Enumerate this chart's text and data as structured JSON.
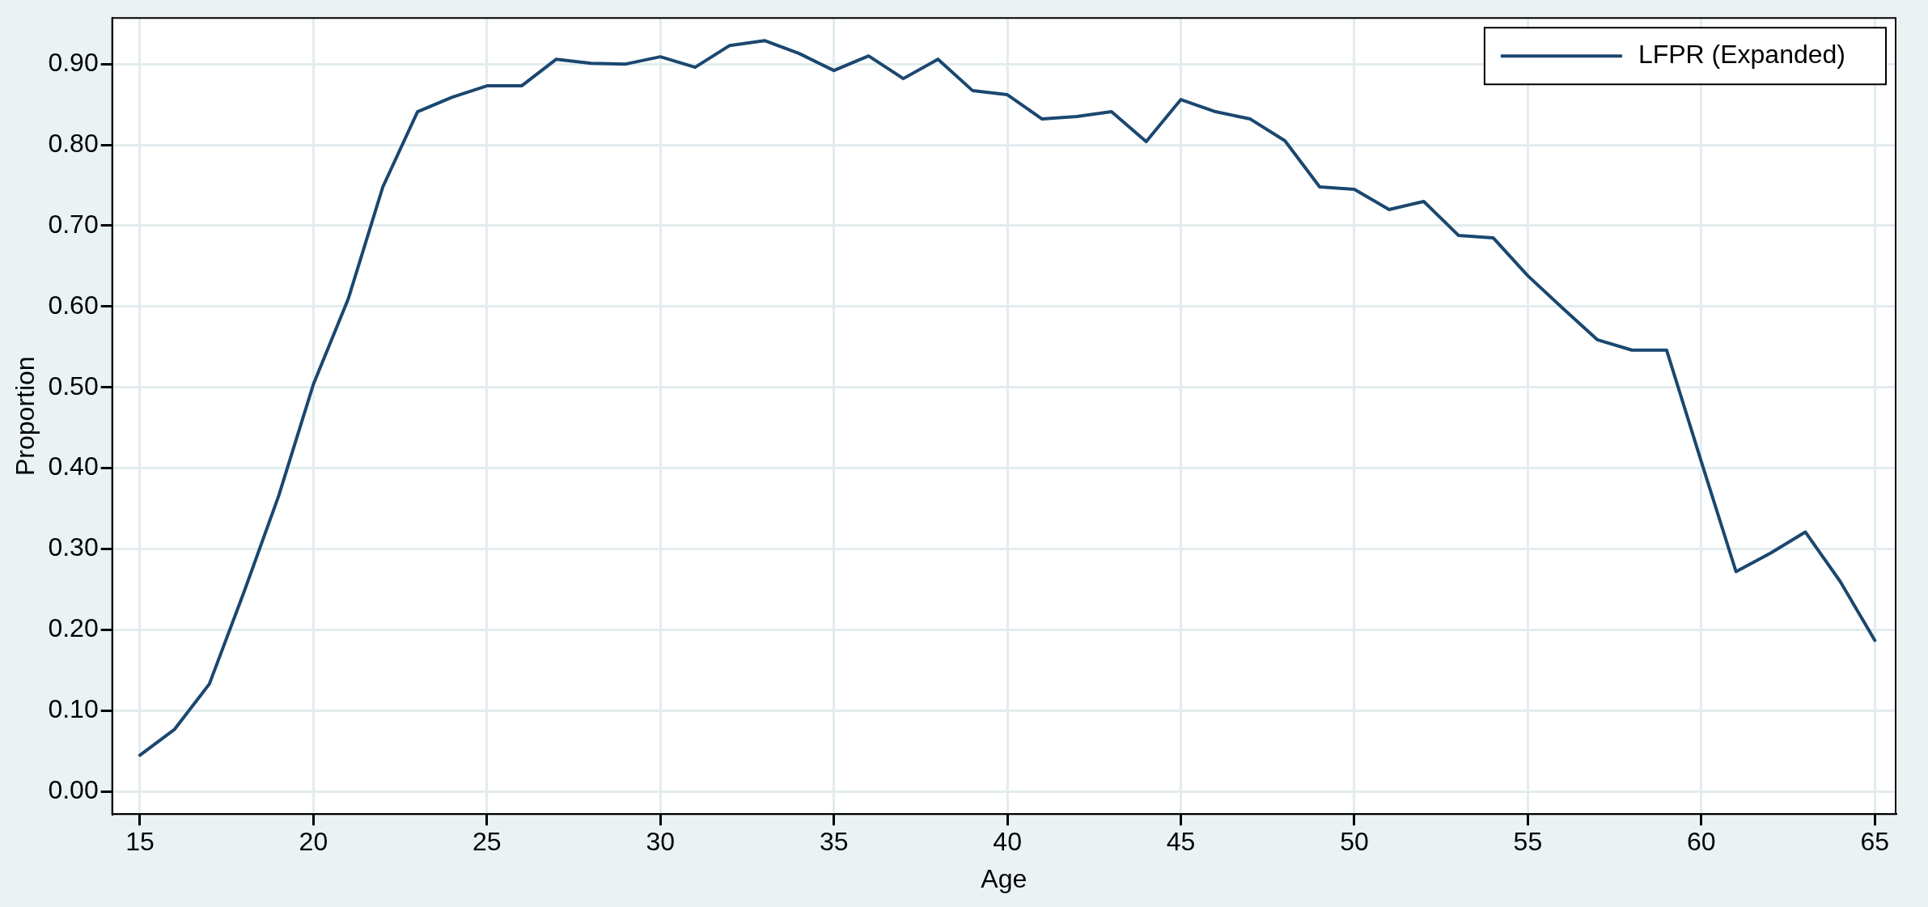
{
  "chart_data": {
    "type": "line",
    "xlabel": "Age",
    "ylabel": "Proportion",
    "x": [
      15,
      16,
      17,
      18,
      19,
      20,
      21,
      22,
      23,
      24,
      25,
      26,
      27,
      28,
      29,
      30,
      31,
      32,
      33,
      34,
      35,
      36,
      37,
      38,
      39,
      40,
      41,
      42,
      43,
      44,
      45,
      46,
      47,
      48,
      49,
      50,
      51,
      52,
      53,
      54,
      55,
      56,
      57,
      58,
      59,
      60,
      61,
      62,
      63,
      64,
      65
    ],
    "series": [
      {
        "name": "LFPR (Expanded)",
        "color": "#1a476f",
        "values": [
          0.045,
          0.077,
          0.133,
          0.247,
          0.366,
          0.504,
          0.609,
          0.748,
          0.841,
          0.859,
          0.873,
          0.873,
          0.906,
          0.901,
          0.9,
          0.909,
          0.896,
          0.923,
          0.929,
          0.913,
          0.892,
          0.91,
          0.882,
          0.906,
          0.867,
          0.862,
          0.832,
          0.835,
          0.841,
          0.804,
          0.856,
          0.841,
          0.832,
          0.805,
          0.748,
          0.745,
          0.72,
          0.73,
          0.688,
          0.685,
          0.638,
          0.598,
          0.559,
          0.546,
          0.546,
          0.408,
          0.272,
          0.295,
          0.321,
          0.26,
          0.187
        ]
      }
    ],
    "xlim": [
      14.2,
      65.6
    ],
    "xticks": [
      15,
      20,
      25,
      30,
      35,
      40,
      45,
      50,
      55,
      60,
      65
    ],
    "ylim": [
      -0.028,
      0.957
    ],
    "yticks": [
      {
        "value": 0,
        "label": "0.00"
      },
      {
        "value": 0.1,
        "label": "0.10"
      },
      {
        "value": 0.2,
        "label": "0.20"
      },
      {
        "value": 0.3,
        "label": "0.30"
      },
      {
        "value": 0.4,
        "label": "0.40"
      },
      {
        "value": 0.5,
        "label": "0.50"
      },
      {
        "value": 0.6,
        "label": "0.60"
      },
      {
        "value": 0.7,
        "label": "0.70"
      },
      {
        "value": 0.8,
        "label": "0.80"
      },
      {
        "value": 0.9,
        "label": "0.90"
      }
    ],
    "grid": true,
    "legend": "top right",
    "line_style": "solid",
    "marker": "none"
  }
}
